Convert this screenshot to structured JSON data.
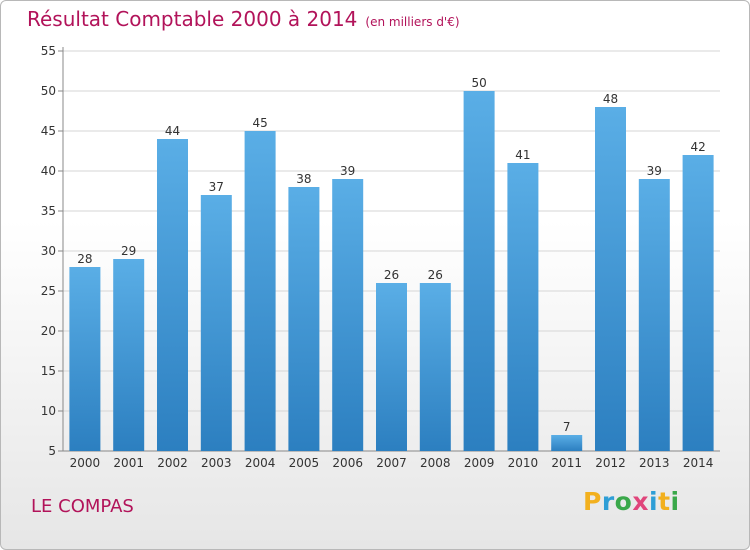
{
  "title": "Résultat Comptable 2000 à 2014",
  "unit": "(en milliers d'€)",
  "commune": "LE COMPAS",
  "logo": {
    "letters": [
      "P",
      "r",
      "o",
      "x",
      "i",
      "t",
      "i"
    ],
    "colors": [
      "#f2b01e",
      "#2e9ed6",
      "#3aa84a",
      "#e0457b",
      "#2e9ed6",
      "#f2b01e",
      "#3aa84a"
    ]
  },
  "colors": {
    "title": "#b2135a",
    "bar_top": "#5aaee6",
    "bar_bottom": "#2c7fc0"
  },
  "chart_data": {
    "type": "bar",
    "title": "Résultat Comptable 2000 à 2014",
    "categories": [
      "2000",
      "2001",
      "2002",
      "2003",
      "2004",
      "2005",
      "2006",
      "2007",
      "2008",
      "2009",
      "2010",
      "2011",
      "2012",
      "2013",
      "2014"
    ],
    "values": [
      28,
      29,
      44,
      37,
      45,
      38,
      39,
      26,
      26,
      50,
      41,
      7,
      48,
      39,
      42
    ],
    "ylim": [
      5,
      55
    ],
    "yticks": [
      5,
      10,
      15,
      20,
      25,
      30,
      35,
      40,
      45,
      50,
      55
    ],
    "grid": true,
    "xlabel": "",
    "ylabel": ""
  }
}
